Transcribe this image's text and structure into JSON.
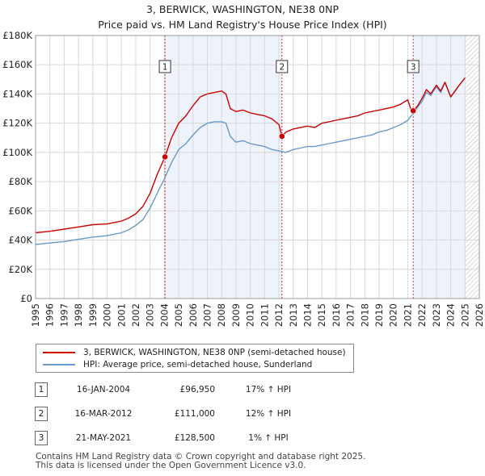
{
  "title_line1": "3, BERWICK, WASHINGTON, NE38 0NP",
  "title_line2": "Price paid vs. HM Land Registry's House Price Index (HPI)",
  "colors": {
    "property": "#cc0000",
    "hpi": "#6699cc",
    "shade": "#eef2fb",
    "marker_line": "#cc0000"
  },
  "chart_data": {
    "type": "line",
    "xlim": [
      1995,
      2026
    ],
    "ylim": [
      0,
      180000
    ],
    "y_ticks": [
      0,
      20000,
      40000,
      60000,
      80000,
      100000,
      120000,
      140000,
      160000,
      180000
    ],
    "y_tick_labels": [
      "£0",
      "£20K",
      "£40K",
      "£60K",
      "£80K",
      "£100K",
      "£120K",
      "£140K",
      "£160K",
      "£180K"
    ],
    "x_ticks": [
      1995,
      1996,
      1997,
      1998,
      1999,
      2000,
      2001,
      2002,
      2003,
      2004,
      2005,
      2006,
      2007,
      2008,
      2009,
      2010,
      2011,
      2012,
      2013,
      2014,
      2015,
      2016,
      2017,
      2018,
      2019,
      2020,
      2021,
      2022,
      2023,
      2024,
      2025,
      2026
    ],
    "x_tick_labels": [
      "1995",
      "1996",
      "1997",
      "1998",
      "1999",
      "2000",
      "2001",
      "2002",
      "2003",
      "2004",
      "2005",
      "2006",
      "2007",
      "2008",
      "2009",
      "2010",
      "2011",
      "2012",
      "2013",
      "2014",
      "2015",
      "2016",
      "2017",
      "2018",
      "2019",
      "2020",
      "2021",
      "2022",
      "2023",
      "2024",
      "2025",
      "2026"
    ],
    "shaded_regions": [
      [
        2004.04,
        2012.21
      ],
      [
        2021.38,
        2025.0
      ]
    ],
    "hatched_region": [
      2025.0,
      2026
    ],
    "series": [
      {
        "name": "3, BERWICK, WASHINGTON, NE38 0NP (semi-detached house)",
        "x": [
          1995.0,
          1996.0,
          1997.0,
          1998.0,
          1999.0,
          2000.0,
          2000.5,
          2001.0,
          2001.5,
          2002.0,
          2002.5,
          2003.0,
          2003.5,
          2004.04,
          2004.5,
          2005.0,
          2005.5,
          2006.0,
          2006.5,
          2007.0,
          2007.5,
          2008.0,
          2008.3,
          2008.6,
          2009.0,
          2009.5,
          2010.0,
          2010.5,
          2011.0,
          2011.5,
          2012.0,
          2012.21,
          2012.5,
          2013.0,
          2013.5,
          2014.0,
          2014.5,
          2015.0,
          2015.5,
          2016.0,
          2016.5,
          2017.0,
          2017.5,
          2018.0,
          2018.5,
          2019.0,
          2019.5,
          2020.0,
          2020.5,
          2021.0,
          2021.2,
          2021.38,
          2021.7,
          2022.0,
          2022.3,
          2022.6,
          2023.0,
          2023.3,
          2023.6,
          2024.0,
          2024.3,
          2024.6,
          2025.0
        ],
        "values": [
          45000,
          46000,
          47500,
          49000,
          50500,
          51000,
          52000,
          53000,
          55000,
          58000,
          63000,
          72000,
          85000,
          96950,
          110000,
          120000,
          125000,
          132000,
          138000,
          140000,
          141000,
          142000,
          140000,
          130000,
          128000,
          129000,
          127000,
          126000,
          125000,
          123000,
          119000,
          111000,
          114000,
          116000,
          117000,
          118000,
          117000,
          120000,
          121000,
          122000,
          123000,
          124000,
          125000,
          127000,
          128000,
          129000,
          130000,
          131000,
          133000,
          136000,
          130000,
          128500,
          132000,
          137000,
          143000,
          140000,
          146000,
          142000,
          148000,
          138000,
          142000,
          146000,
          151000
        ]
      },
      {
        "name": "HPI: Average price, semi-detached house, Sunderland",
        "x": [
          1995.0,
          1996.0,
          1997.0,
          1998.0,
          1999.0,
          2000.0,
          2000.5,
          2001.0,
          2001.5,
          2002.0,
          2002.5,
          2003.0,
          2003.5,
          2004.0,
          2004.5,
          2005.0,
          2005.5,
          2006.0,
          2006.5,
          2007.0,
          2007.5,
          2008.0,
          2008.3,
          2008.6,
          2009.0,
          2009.5,
          2010.0,
          2010.5,
          2011.0,
          2011.5,
          2012.0,
          2012.5,
          2013.0,
          2013.5,
          2014.0,
          2014.5,
          2015.0,
          2015.5,
          2016.0,
          2016.5,
          2017.0,
          2017.5,
          2018.0,
          2018.5,
          2019.0,
          2019.5,
          2020.0,
          2020.5,
          2021.0,
          2021.4,
          2021.7,
          2022.0,
          2022.3,
          2022.6,
          2023.0,
          2023.3,
          2023.6,
          2024.0,
          2024.3,
          2024.6,
          2025.0
        ],
        "values": [
          37000,
          38000,
          39000,
          40500,
          42000,
          43000,
          44000,
          45000,
          47000,
          50000,
          54000,
          62000,
          72000,
          82000,
          93000,
          102000,
          106000,
          112000,
          117000,
          120000,
          121000,
          121000,
          120000,
          111000,
          107000,
          108000,
          106000,
          105000,
          104000,
          102000,
          101000,
          100000,
          102000,
          103000,
          104000,
          104000,
          105000,
          106000,
          107000,
          108000,
          109000,
          110000,
          111000,
          112000,
          114000,
          115000,
          117000,
          119000,
          122000,
          127000,
          131000,
          135000,
          141000,
          139000,
          145000,
          141000,
          148000,
          138000,
          142000,
          146000,
          151000
        ]
      }
    ],
    "sale_markers": [
      {
        "label": "1",
        "x": 2004.04,
        "y": 96950
      },
      {
        "label": "2",
        "x": 2012.21,
        "y": 111000
      },
      {
        "label": "3",
        "x": 2021.38,
        "y": 128500
      }
    ]
  },
  "legend": {
    "property_label": "3, BERWICK, WASHINGTON, NE38 0NP (semi-detached house)",
    "hpi_label": "HPI: Average price, semi-detached house, Sunderland"
  },
  "sales": [
    {
      "num": "1",
      "date": "16-JAN-2004",
      "price": "£96,950",
      "hpi": "17% ↑ HPI"
    },
    {
      "num": "2",
      "date": "16-MAR-2012",
      "price": "£111,000",
      "hpi": "12% ↑ HPI"
    },
    {
      "num": "3",
      "date": "21-MAY-2021",
      "price": "£128,500",
      "hpi": "1% ↑ HPI"
    }
  ],
  "footer_line1": "Contains HM Land Registry data © Crown copyright and database right 2025.",
  "footer_line2": "This data is licensed under the Open Government Licence v3.0."
}
